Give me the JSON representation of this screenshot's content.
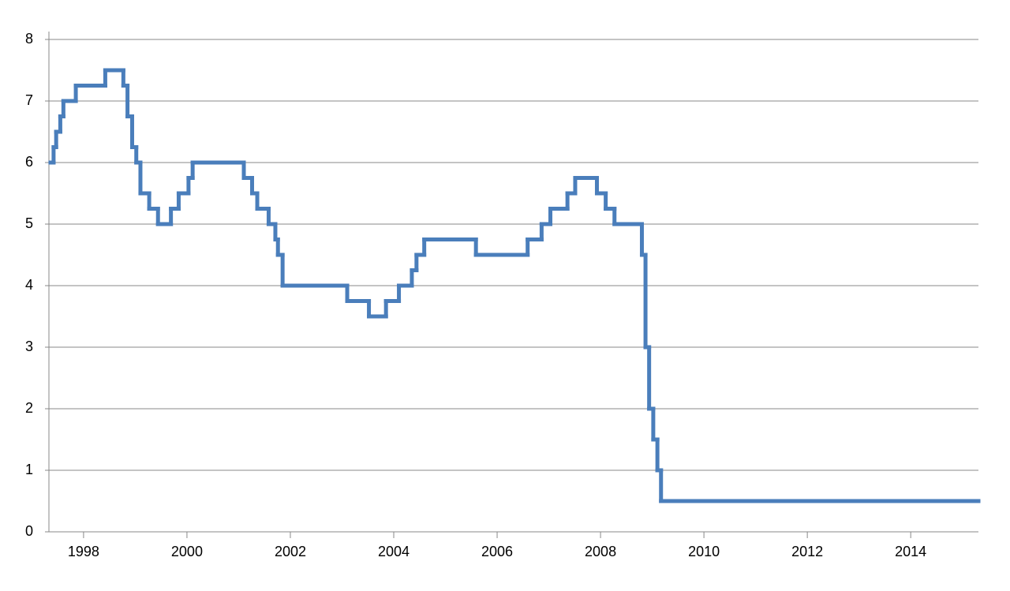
{
  "chart_data": {
    "type": "line",
    "step": true,
    "x": [
      1997.36,
      1997.42,
      1997.47,
      1997.55,
      1997.61,
      1997.85,
      1998.42,
      1998.77,
      1998.85,
      1998.94,
      1999.02,
      1999.1,
      1999.27,
      1999.44,
      1999.69,
      1999.84,
      2000.03,
      2000.11,
      2001.1,
      2001.26,
      2001.36,
      2001.58,
      2001.71,
      2001.76,
      2001.85,
      2003.1,
      2003.52,
      2003.85,
      2004.1,
      2004.35,
      2004.44,
      2004.59,
      2005.59,
      2006.59,
      2006.86,
      2007.03,
      2007.36,
      2007.51,
      2007.93,
      2008.1,
      2008.27,
      2008.8,
      2008.87,
      2008.94,
      2009.02,
      2009.1,
      2009.17,
      2015.31
    ],
    "series": [
      {
        "color": "#4a7ebb",
        "values": [
          6.0,
          6.25,
          6.5,
          6.75,
          7.0,
          7.25,
          7.5,
          7.25,
          6.75,
          6.25,
          6.0,
          5.5,
          5.25,
          5.0,
          5.25,
          5.5,
          5.75,
          6.0,
          5.75,
          5.5,
          5.25,
          5.0,
          4.75,
          4.5,
          4.0,
          3.75,
          3.5,
          3.75,
          4.0,
          4.25,
          4.5,
          4.75,
          4.5,
          4.75,
          5.0,
          5.25,
          5.5,
          5.75,
          5.5,
          5.25,
          5.0,
          4.5,
          3.0,
          2.0,
          1.5,
          1.0,
          0.5,
          0.5
        ]
      }
    ],
    "xlim": [
      1997.33,
      2015.31
    ],
    "xticks": [
      1998,
      2000,
      2002,
      2004,
      2006,
      2008,
      2010,
      2012,
      2014
    ],
    "ylim": [
      0,
      8
    ],
    "yticks": [
      0,
      1,
      2,
      3,
      4,
      5,
      6,
      7,
      8
    ],
    "grid": true
  }
}
